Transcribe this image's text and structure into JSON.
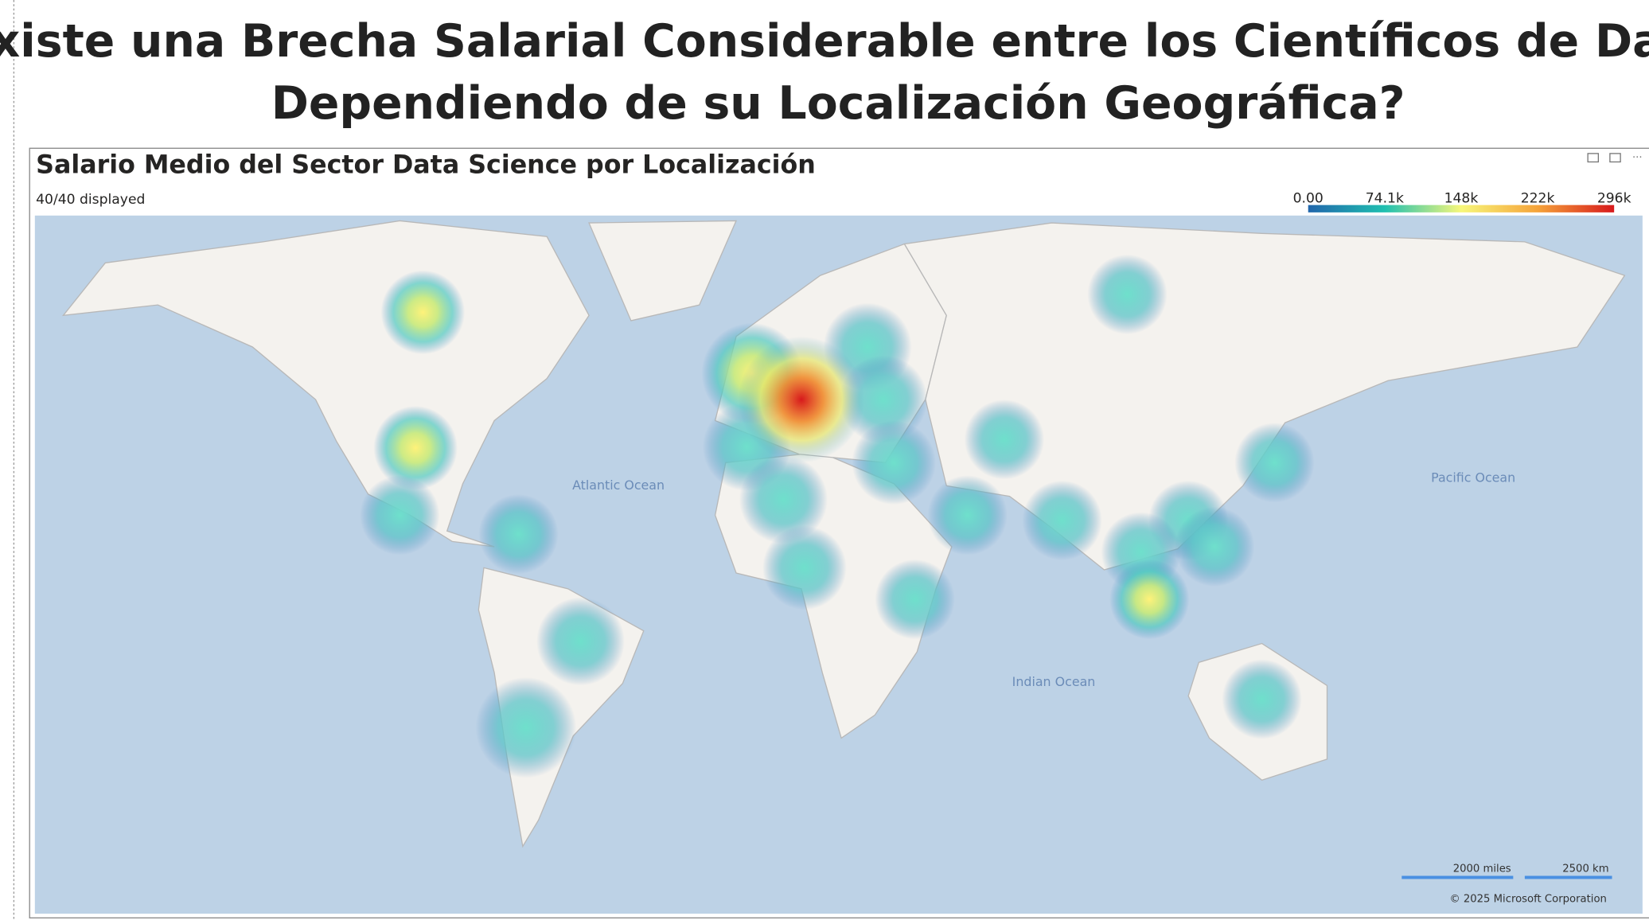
{
  "header": {
    "title_line1": "¿Existe una Brecha Salarial Considerable entre los Científicos de Datos",
    "title_line2": "Dependiendo de su Localización Geográfica?"
  },
  "visual": {
    "title": "Salario Medio del Sector Data Science por Localización",
    "displayed": "40/40 displayed",
    "legend": {
      "ticks": [
        "0.00",
        "74.1k",
        "148k",
        "222k",
        "296k"
      ]
    },
    "map": {
      "ocean_labels": [
        "Atlantic Ocean",
        "Pacific Ocean",
        "Indian Ocean"
      ],
      "scale": [
        "2000 miles",
        "2500 km"
      ],
      "copyright": "© 2025 Microsoft Corporation"
    }
  }
}
